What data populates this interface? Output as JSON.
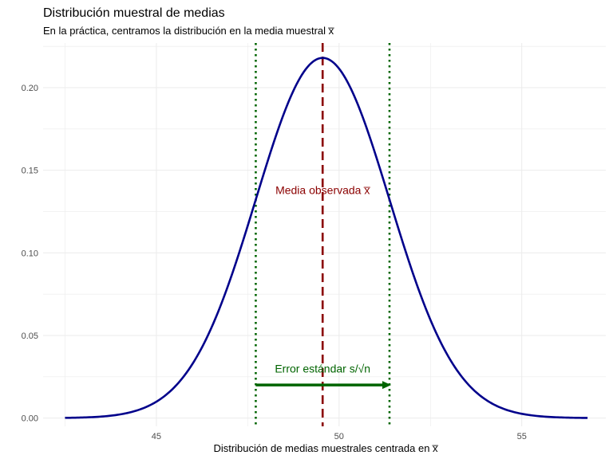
{
  "chart_data": {
    "type": "line",
    "title": "Distribución muestral de medias",
    "subtitle": "En la práctica, centramos la distribución en la media muestral  x̅",
    "xlabel": "Distribución de medias muestrales centrada en  x̅",
    "ylabel": "",
    "xlim": [
      41.9,
      57.3
    ],
    "ylim": [
      -0.005,
      0.227
    ],
    "x_ticks": [
      45,
      50,
      55
    ],
    "x_tick_labels": [
      "45",
      "50",
      "55"
    ],
    "y_ticks": [
      0.0,
      0.05,
      0.1,
      0.15,
      0.2
    ],
    "y_tick_labels": [
      "0.00",
      "0.05",
      "0.10",
      "0.15",
      "0.20"
    ],
    "grid": true,
    "curve": {
      "distribution": "normal",
      "mean": 49.55,
      "sd": 1.83,
      "x_range": [
        42.5,
        56.8
      ],
      "peak_density": 0.218,
      "color": "#00008b"
    },
    "vlines": [
      {
        "x": 49.55,
        "style": "dashed",
        "color": "#8b0000"
      },
      {
        "x": 47.72,
        "style": "dotted",
        "color": "#006400"
      },
      {
        "x": 51.38,
        "style": "dotted",
        "color": "#006400"
      }
    ],
    "arrow": {
      "x_start": 47.72,
      "x_end": 51.38,
      "y": 0.02,
      "color": "#006400"
    },
    "annotations": [
      {
        "text": "Media observada  x̅",
        "x": 49.55,
        "y": 0.138,
        "color": "#8b0000"
      },
      {
        "text": "Error estándar  s/√n",
        "x": 49.55,
        "y": 0.03,
        "color": "#006400"
      }
    ]
  }
}
